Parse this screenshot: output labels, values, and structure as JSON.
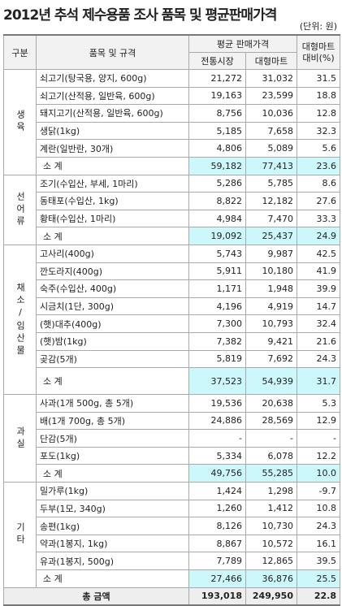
{
  "title": "2012년 추석 제수용품 조사 품목 및 평균판매가격",
  "unit": "(단위: 원)",
  "header": {
    "group": "구분",
    "item": "품목 및 규격",
    "avg": "평균 판매가격",
    "market": "전통시장",
    "mart": "대형마트",
    "ratio": "대형마트 대비(%)"
  },
  "groups": [
    {
      "label": "생육",
      "rows": [
        [
          "쇠고기(탕국용, 양지, 600g)",
          "21,272",
          "31,032",
          "31.5"
        ],
        [
          "쇠고기(산적용, 일반육, 600g)",
          "19,163",
          "23,599",
          "18.8"
        ],
        [
          "돼지고기(산적용, 일반육, 600g)",
          "8,756",
          "10,036",
          "12.8"
        ],
        [
          "생닭(1kg)",
          "5,185",
          "7,658",
          "32.3"
        ],
        [
          "계란(일반란, 30개)",
          "4,806",
          "5,089",
          "5.6"
        ]
      ],
      "subtotal": [
        "소 계",
        "59,182",
        "77,413",
        "23.6"
      ]
    },
    {
      "label": "선어류",
      "rows": [
        [
          "조기(수입산, 부세, 1마리)",
          "5,286",
          "5,785",
          "8.6"
        ],
        [
          "동태포(수입산, 1kg)",
          "8,822",
          "12,182",
          "27.6"
        ],
        [
          "황태(수입산, 1마리)",
          "4,984",
          "7,470",
          "33.3"
        ]
      ],
      "subtotal": [
        "소 계",
        "19,092",
        "25,437",
        "24.9"
      ]
    },
    {
      "label": "채소/임산물",
      "rows": [
        [
          "고사리(400g)",
          "5,743",
          "9,987",
          "42.5"
        ],
        [
          "깐도라지(400g)",
          "5,911",
          "10,180",
          "41.9"
        ],
        [
          "숙주(수입산, 400g)",
          "1,171",
          "1,948",
          "39.9"
        ],
        [
          "시금치(1단, 300g)",
          "4,196",
          "4,919",
          "14.7"
        ],
        [
          "(햇)대추(400g)",
          "7,300",
          "10,793",
          "32.4"
        ],
        [
          "(햇)밤(1kg)",
          "7,382",
          "9,421",
          "21.6"
        ],
        [
          "곶감(5개)",
          "5,819",
          "7,692",
          "24.3"
        ]
      ],
      "subtotal": [
        "소 계",
        "37,523",
        "54,939",
        "31.7"
      ]
    },
    {
      "label": "과실",
      "rows": [
        [
          "사과(1개 500g, 총 5개)",
          "19,536",
          "20,638",
          "5.3"
        ],
        [
          "배(1개 700g, 총 5개)",
          "24,886",
          "28,569",
          "12.9"
        ],
        [
          "단감(5개)",
          "-",
          "-",
          "-"
        ],
        [
          "포도(1kg)",
          "5,334",
          "6,078",
          "12.2"
        ]
      ],
      "subtotal": [
        "소 계",
        "49,756",
        "55,285",
        "10.0"
      ]
    },
    {
      "label": "기타",
      "rows": [
        [
          "밀가루(1kg)",
          "1,424",
          "1,298",
          "-9.7"
        ],
        [
          "두부(1모, 340g)",
          "1,260",
          "1,412",
          "10.8"
        ],
        [
          "송편(1kg)",
          "8,126",
          "10,730",
          "24.3"
        ],
        [
          "약과(1봉지, 1kg)",
          "8,867",
          "10,572",
          "16.1"
        ],
        [
          "유과(1봉지, 500g)",
          "7,789",
          "12,865",
          "39.5"
        ]
      ],
      "subtotal": [
        "소 계",
        "27,466",
        "36,876",
        "25.5"
      ]
    }
  ],
  "total": [
    "총 금액",
    "193,018",
    "249,950",
    "22.8"
  ]
}
